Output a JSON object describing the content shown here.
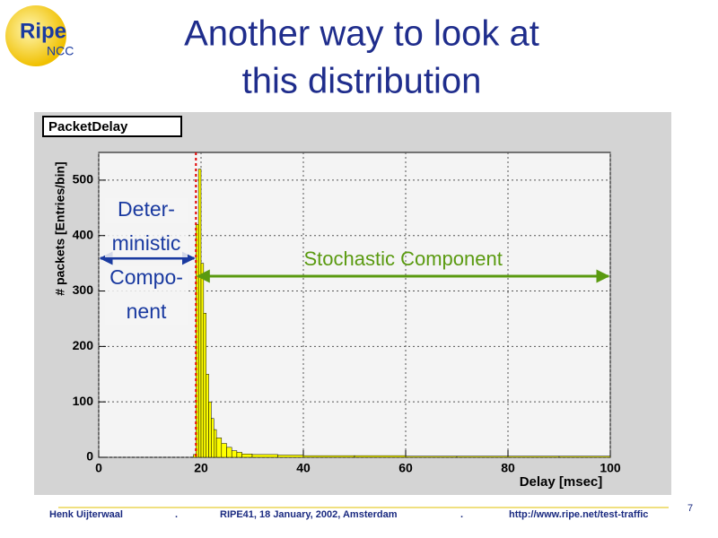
{
  "slide": {
    "title": [
      "Another way to look at",
      "this distribution"
    ],
    "logo": {
      "main": "Ripe",
      "sub": "NCC"
    },
    "footer": {
      "author": "Henk Uijterwaal",
      "sep1": ".",
      "event": "RIPE41, 18 January, 2002, Amsterdam",
      "sep2": ".",
      "url": "http://www.ripe.net/test-traffic"
    },
    "page_number": "7"
  },
  "chart_data": {
    "type": "histogram",
    "title": "PacketDelay",
    "x_label": "Delay [msec]",
    "y_label": "# packets [Entries/bin]",
    "bins": [
      18.5,
      19,
      19.5,
      20,
      20.5,
      21,
      21.5,
      22,
      22.5,
      23,
      24,
      25,
      26,
      27,
      28,
      30,
      35,
      40,
      50,
      60,
      70,
      80,
      90,
      100
    ],
    "counts": [
      5,
      420,
      520,
      350,
      260,
      150,
      100,
      70,
      50,
      35,
      25,
      18,
      12,
      9,
      6,
      5,
      4,
      3,
      3,
      2,
      2,
      2,
      2
    ],
    "color": "#ffff00",
    "xlim": [
      0,
      100
    ],
    "ylim": [
      0,
      550
    ],
    "xticks": [
      0,
      20,
      40,
      60,
      80,
      100
    ],
    "yticks": [
      0,
      100,
      200,
      300,
      400,
      500
    ],
    "grid": true,
    "marker_x": 19,
    "annotations": {
      "deterministic": [
        "Deter-",
        "ministic",
        "Compo-",
        "nent"
      ],
      "stochastic": "Stochastic Component"
    }
  }
}
